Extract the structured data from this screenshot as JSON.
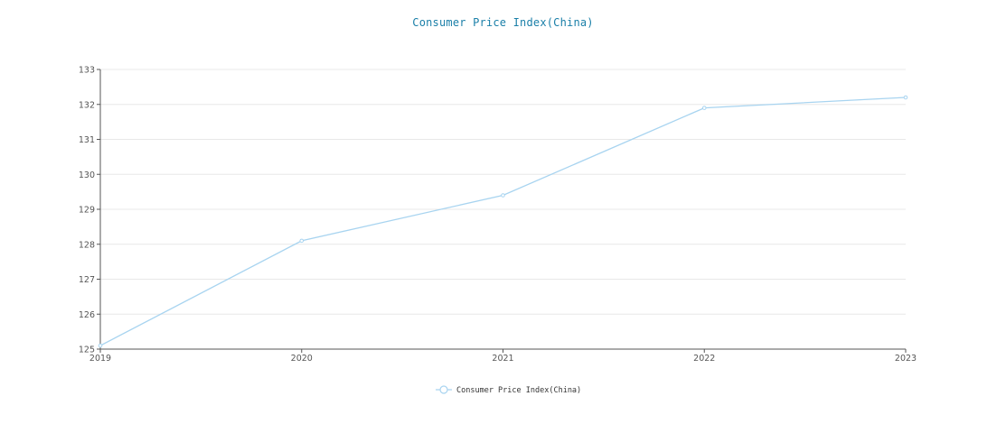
{
  "chart_data": {
    "type": "line",
    "title": "Consumer Price Index(China)",
    "xlabel": "",
    "ylabel": "",
    "categories": [
      "2019",
      "2020",
      "2021",
      "2022",
      "2023"
    ],
    "series": [
      {
        "name": "Consumer Price Index(China)",
        "values": [
          125.1,
          128.1,
          129.4,
          131.9,
          132.2
        ],
        "color": "#a8d4f0"
      }
    ],
    "ylim": [
      125,
      133
    ],
    "yticks": [
      "125",
      "126",
      "127",
      "128",
      "129",
      "130",
      "131",
      "132",
      "133"
    ],
    "grid": true,
    "legend": "bottom-center"
  }
}
